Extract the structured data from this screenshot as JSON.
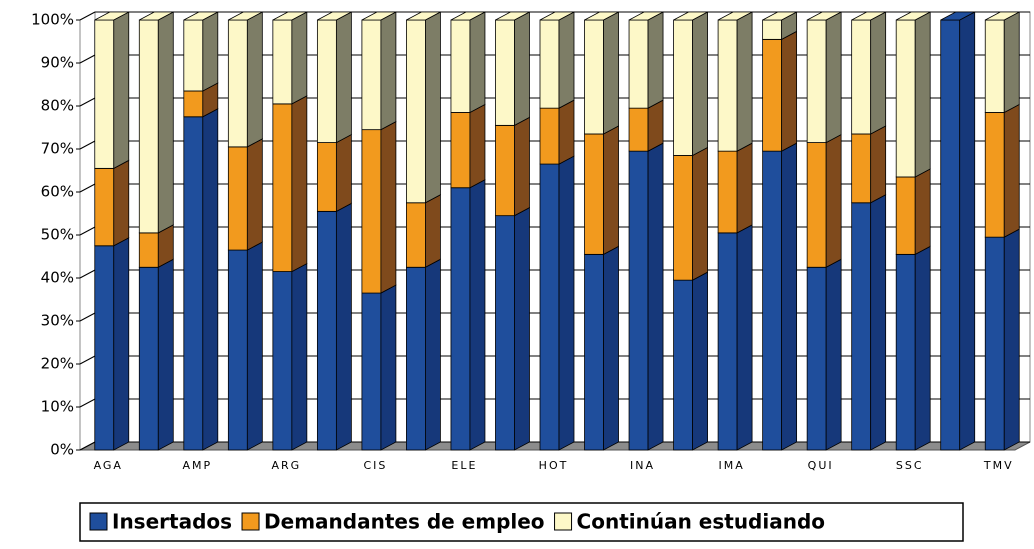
{
  "chart_data": {
    "type": "stacked-bar-3d",
    "categories": [
      "AGA",
      null,
      "AMP",
      null,
      "ARG",
      null,
      "CIS",
      null,
      "ELE",
      null,
      "HOT",
      null,
      "INA",
      null,
      "IMA",
      null,
      "QUI",
      null,
      "SSC",
      null,
      "TMV"
    ],
    "series": [
      {
        "name": "Insertados",
        "color": "#1f4e9c",
        "side": "#16387a",
        "values": [
          47.5,
          42.5,
          77.5,
          46.5,
          41.5,
          55.5,
          36.5,
          42.5,
          61,
          54.5,
          66.5,
          45.5,
          69.5,
          39.5,
          50.5,
          69.5,
          42.5,
          57.5,
          45.5,
          100,
          49.5
        ]
      },
      {
        "name": "Demandantes de empleo",
        "color": "#f29a1e",
        "side": "#7f4a1c",
        "values": [
          18,
          8,
          6,
          24,
          39,
          16,
          38,
          15,
          17.5,
          21,
          13,
          28,
          10,
          29,
          19,
          26,
          29,
          16,
          18,
          0,
          29
        ]
      },
      {
        "name": "Continúan estudiando",
        "color": "#fdf8c8",
        "side": "#7d7d66",
        "values": [
          34.5,
          49.5,
          16.5,
          29.5,
          19.5,
          28.5,
          25.5,
          42.5,
          21.5,
          24.5,
          20.5,
          26.5,
          20.5,
          31.5,
          30.5,
          4.5,
          28.5,
          26.5,
          36.5,
          0,
          21.5
        ]
      }
    ],
    "ylim": [
      0,
      100
    ],
    "yticks": [
      {
        "value": 0,
        "label": "0%"
      },
      {
        "value": 10,
        "label": "10%"
      },
      {
        "value": 20,
        "label": "20%"
      },
      {
        "value": 30,
        "label": "30%"
      },
      {
        "value": 40,
        "label": "40%"
      },
      {
        "value": 50,
        "label": "50%"
      },
      {
        "value": 60,
        "label": "60%"
      },
      {
        "value": 70,
        "label": "70%"
      },
      {
        "value": 80,
        "label": "80%"
      },
      {
        "value": 90,
        "label": "90%"
      },
      {
        "value": 100,
        "label": "100%"
      }
    ],
    "grid": true,
    "legend": "bottom"
  }
}
